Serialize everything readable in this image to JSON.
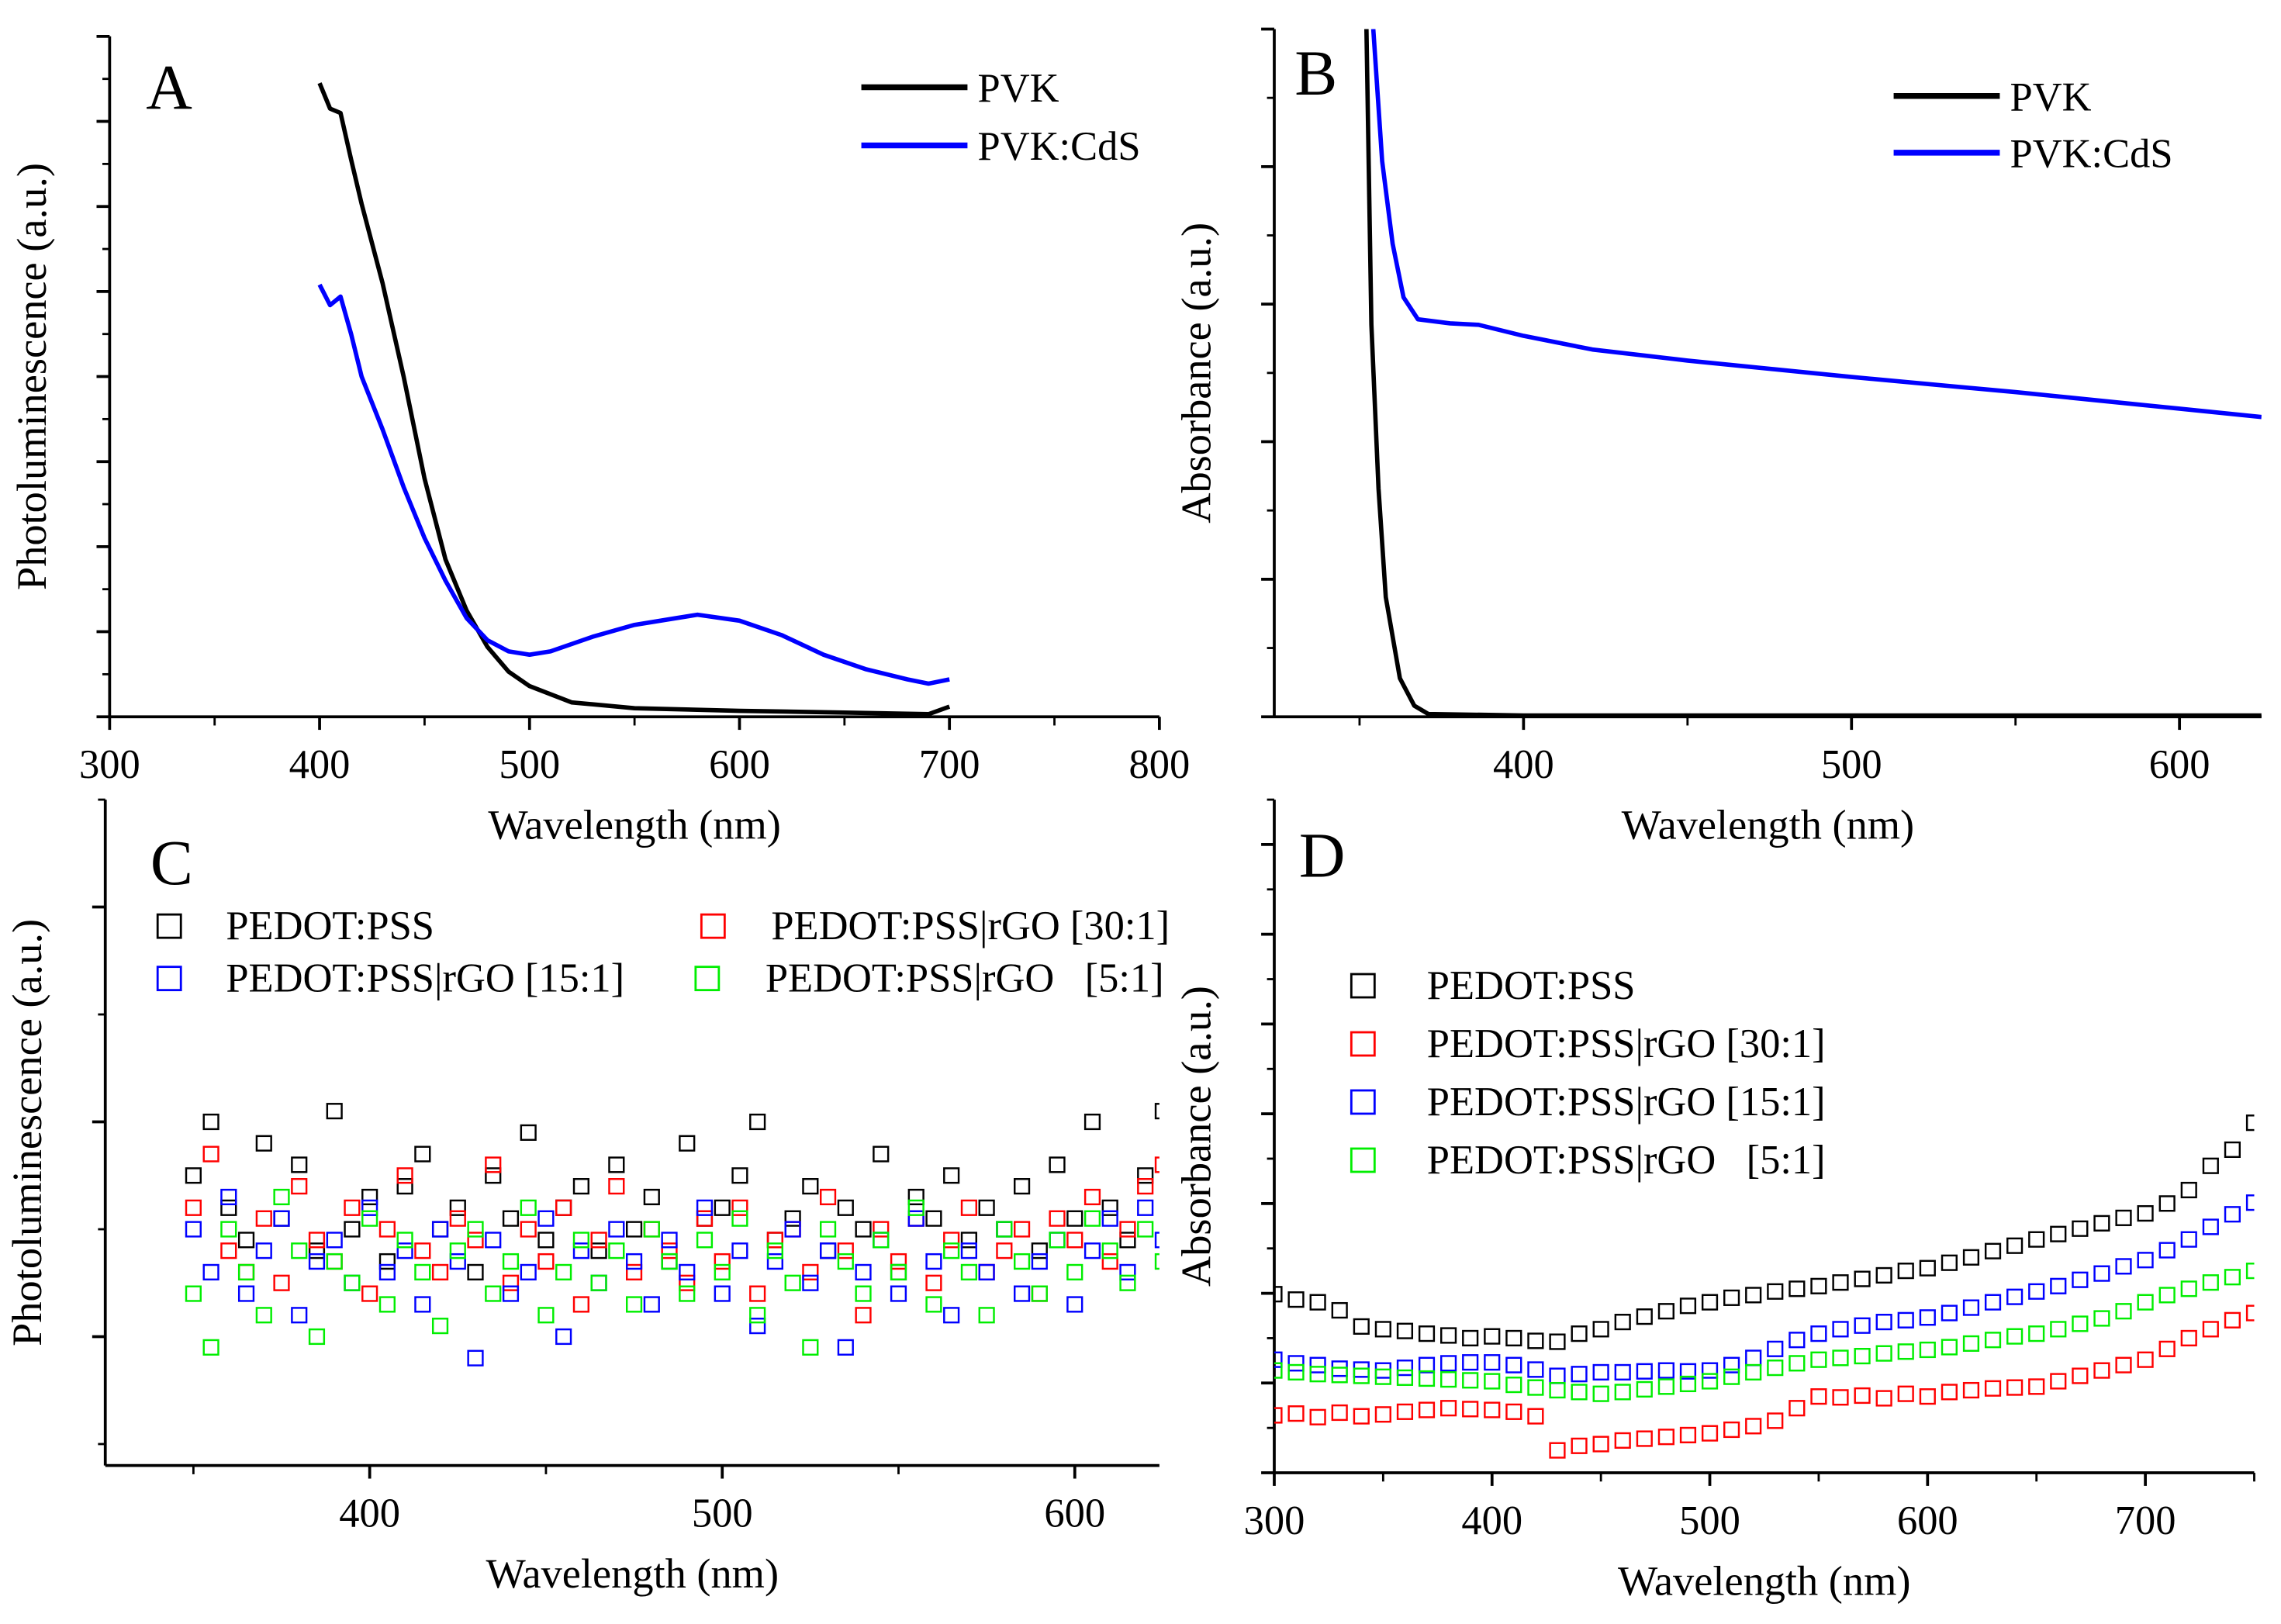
{
  "chart_data": [
    {
      "panel": "A",
      "type": "line",
      "xlabel": "Wavelength (nm)",
      "ylabel": "Photoluminescence (a.u.)",
      "xlim": [
        300,
        800
      ],
      "ylim": [
        0,
        8
      ],
      "xticks": [
        300,
        400,
        500,
        600,
        700,
        800
      ],
      "y_tick_labels_shown": false,
      "grid": false,
      "legend_placement": "top-right",
      "series": [
        {
          "name": "PVK",
          "color": "#000000",
          "x": [
            400,
            405,
            410,
            415,
            420,
            430,
            440,
            450,
            460,
            470,
            480,
            490,
            500,
            520,
            550,
            600,
            650,
            690,
            700
          ],
          "y": [
            7.45,
            7.15,
            7.1,
            6.55,
            6.03,
            5.1,
            4.0,
            2.8,
            1.85,
            1.25,
            0.82,
            0.53,
            0.36,
            0.17,
            0.1,
            0.07,
            0.05,
            0.03,
            0.12
          ]
        },
        {
          "name": "PVK:CdS",
          "color": "#0000ff",
          "x": [
            400,
            405,
            410,
            415,
            420,
            430,
            440,
            450,
            460,
            470,
            480,
            490,
            500,
            510,
            530,
            550,
            570,
            580,
            600,
            620,
            640,
            660,
            680,
            690,
            700
          ],
          "y": [
            5.08,
            4.84,
            4.94,
            4.5,
            4.0,
            3.38,
            2.7,
            2.1,
            1.6,
            1.16,
            0.9,
            0.77,
            0.73,
            0.77,
            0.94,
            1.08,
            1.16,
            1.2,
            1.13,
            0.96,
            0.73,
            0.56,
            0.44,
            0.39,
            0.44
          ]
        }
      ]
    },
    {
      "panel": "B",
      "type": "line",
      "xlabel": "Wavelength (nm)",
      "ylabel": "Absorbance (a.u.)",
      "xlim": [
        324,
        625
      ],
      "ylim": [
        0,
        5
      ],
      "xticks": [
        400,
        500,
        600
      ],
      "y_tick_labels_shown": false,
      "grid": false,
      "legend_placement": "top-right",
      "series": [
        {
          "name": "PVK",
          "color": "#000000",
          "x": [
            352.1,
            353.6,
            355.8,
            358,
            362.3,
            366.7,
            371,
            400,
            450,
            500,
            550,
            600,
            625
          ],
          "y": [
            5,
            2.85,
            1.66,
            0.87,
            0.28,
            0.08,
            0.02,
            0.01,
            0.01,
            0.01,
            0.01,
            0.01,
            0.01
          ]
        },
        {
          "name": "PVK:CdS",
          "color": "#0000ff",
          "x": [
            354.2,
            356.9,
            360.1,
            363.4,
            367.8,
            377.6,
            386.3,
            400,
            421,
            450,
            500,
            550,
            600,
            625
          ],
          "y": [
            5,
            4.04,
            3.44,
            3.05,
            2.89,
            2.86,
            2.85,
            2.77,
            2.67,
            2.59,
            2.47,
            2.36,
            2.24,
            2.18
          ]
        }
      ]
    },
    {
      "panel": "C",
      "type": "scatter",
      "xlabel": "Wavelength (nm)",
      "ylabel": "Photoluminescence (a.u.)",
      "xlim": [
        325,
        624
      ],
      "ylim": [
        0.4,
        3.5
      ],
      "xticks": [
        400,
        500,
        600
      ],
      "y_tick_labels_shown": false,
      "grid": false,
      "legend_placement": "top",
      "marker": "open-square",
      "x": [
        350,
        355,
        360,
        365,
        370,
        375,
        380,
        385,
        390,
        395,
        400,
        405,
        410,
        415,
        420,
        425,
        430,
        435,
        440,
        445,
        450,
        455,
        460,
        465,
        470,
        475,
        480,
        485,
        490,
        495,
        500,
        505,
        510,
        515,
        520,
        525,
        530,
        535,
        540,
        545,
        550,
        555,
        560,
        565,
        570,
        575,
        580,
        585,
        590,
        595,
        600,
        605,
        610,
        615,
        620,
        625
      ],
      "series": [
        {
          "name": "PEDOT:PSS",
          "color": "#000000",
          "y": [
            1.75,
            2.0,
            1.6,
            1.45,
            1.9,
            1.55,
            1.8,
            1.4,
            2.05,
            1.5,
            1.65,
            1.35,
            1.7,
            1.85,
            1.5,
            1.6,
            1.3,
            1.75,
            1.55,
            1.95,
            1.45,
            1.6,
            1.7,
            1.4,
            1.8,
            1.5,
            1.65,
            1.35,
            1.9,
            1.55,
            1.6,
            1.75,
            2.0,
            1.45,
            1.55,
            1.7,
            1.4,
            1.6,
            1.5,
            1.85,
            1.3,
            1.65,
            1.55,
            1.75,
            1.45,
            1.6,
            1.5,
            1.7,
            1.4,
            1.8,
            1.55,
            2.0,
            1.6,
            1.45,
            1.75,
            2.05
          ]
        },
        {
          "name": "PEDOT:PSS|rGO [30:1]",
          "color": "#ff0000",
          "y": [
            1.6,
            1.85,
            1.4,
            1.3,
            1.55,
            1.25,
            1.7,
            1.45,
            1.35,
            1.6,
            1.2,
            1.5,
            1.75,
            1.4,
            1.3,
            1.55,
            1.45,
            1.8,
            1.25,
            1.5,
            1.35,
            1.6,
            1.15,
            1.45,
            1.7,
            1.3,
            1.5,
            1.4,
            1.25,
            1.55,
            1.35,
            1.6,
            1.2,
            1.45,
            1.5,
            1.3,
            1.65,
            1.4,
            1.1,
            1.5,
            1.35,
            1.55,
            1.25,
            1.45,
            1.6,
            1.3,
            1.4,
            1.5,
            1.2,
            1.55,
            1.45,
            1.65,
            1.35,
            1.5,
            1.7,
            1.8
          ]
        },
        {
          "name": "PEDOT:PSS|rGO [15:1]",
          "color": "#0000ff",
          "y": [
            1.5,
            1.3,
            1.65,
            1.2,
            1.4,
            1.55,
            1.1,
            1.35,
            1.45,
            1.25,
            1.6,
            1.3,
            1.4,
            1.15,
            1.5,
            1.35,
            0.9,
            1.45,
            1.2,
            1.3,
            1.55,
            1.0,
            1.4,
            1.25,
            1.5,
            1.35,
            1.15,
            1.45,
            1.3,
            1.6,
            1.2,
            1.4,
            1.05,
            1.35,
            1.5,
            1.25,
            1.4,
            0.95,
            1.3,
            1.45,
            1.2,
            1.55,
            1.35,
            1.1,
            1.4,
            1.3,
            1.5,
            1.2,
            1.35,
            1.45,
            1.15,
            1.4,
            1.55,
            1.3,
            1.6,
            1.45
          ]
        },
        {
          "name": "PEDOT:PSS|rGO   [5:1]",
          "color": "#00ee00",
          "y": [
            1.2,
            0.95,
            1.5,
            1.3,
            1.1,
            1.65,
            1.4,
            1.0,
            1.35,
            1.25,
            1.55,
            1.15,
            1.45,
            1.3,
            1.05,
            1.4,
            1.5,
            1.2,
            1.35,
            1.6,
            1.1,
            1.3,
            1.45,
            1.25,
            1.4,
            1.15,
            1.5,
            1.35,
            1.2,
            1.45,
            1.3,
            1.55,
            1.1,
            1.4,
            1.25,
            0.95,
            1.5,
            1.35,
            1.2,
            1.45,
            1.3,
            1.6,
            1.15,
            1.4,
            1.3,
            1.1,
            1.5,
            1.35,
            1.2,
            1.45,
            1.3,
            1.55,
            1.4,
            1.25,
            1.5,
            1.35
          ]
        }
      ]
    },
    {
      "panel": "D",
      "type": "scatter",
      "xlabel": "Wavelength (nm)",
      "ylabel": "Absorbance (a.u.)",
      "xlim": [
        300,
        750
      ],
      "ylim": [
        0,
        7.5
      ],
      "xticks": [
        300,
        400,
        500,
        600,
        700
      ],
      "y_tick_labels_shown": false,
      "grid": false,
      "legend_placement": "upper-left",
      "marker": "open-square",
      "x": [
        300,
        310,
        320,
        330,
        340,
        350,
        360,
        370,
        380,
        390,
        400,
        410,
        420,
        430,
        440,
        450,
        460,
        470,
        480,
        490,
        500,
        510,
        520,
        530,
        540,
        550,
        560,
        570,
        580,
        590,
        600,
        610,
        620,
        630,
        640,
        650,
        660,
        670,
        680,
        690,
        700,
        710,
        720,
        730,
        740,
        750
      ],
      "series": [
        {
          "name": "PEDOT:PSS",
          "color": "#000000",
          "y": [
            1.99,
            1.93,
            1.9,
            1.81,
            1.63,
            1.6,
            1.58,
            1.55,
            1.53,
            1.5,
            1.52,
            1.5,
            1.47,
            1.46,
            1.55,
            1.6,
            1.68,
            1.74,
            1.8,
            1.86,
            1.9,
            1.95,
            1.98,
            2.02,
            2.05,
            2.08,
            2.12,
            2.16,
            2.2,
            2.25,
            2.28,
            2.34,
            2.4,
            2.47,
            2.53,
            2.6,
            2.66,
            2.72,
            2.78,
            2.84,
            2.89,
            3.0,
            3.15,
            3.42,
            3.6,
            3.9
          ]
        },
        {
          "name": "PEDOT:PSS|rGO [30:1]",
          "color": "#ff0000",
          "y": [
            0.64,
            0.66,
            0.62,
            0.67,
            0.63,
            0.65,
            0.68,
            0.7,
            0.72,
            0.71,
            0.7,
            0.68,
            0.63,
            0.25,
            0.3,
            0.32,
            0.36,
            0.38,
            0.4,
            0.42,
            0.44,
            0.48,
            0.52,
            0.58,
            0.72,
            0.85,
            0.84,
            0.86,
            0.83,
            0.88,
            0.85,
            0.9,
            0.92,
            0.94,
            0.95,
            0.96,
            1.02,
            1.08,
            1.14,
            1.2,
            1.26,
            1.38,
            1.5,
            1.6,
            1.7,
            1.78
          ]
        },
        {
          "name": "PEDOT:PSS|rGO [15:1]",
          "color": "#0000ff",
          "y": [
            1.26,
            1.22,
            1.2,
            1.16,
            1.15,
            1.14,
            1.17,
            1.2,
            1.22,
            1.23,
            1.23,
            1.2,
            1.15,
            1.08,
            1.1,
            1.12,
            1.12,
            1.13,
            1.14,
            1.13,
            1.14,
            1.2,
            1.28,
            1.38,
            1.48,
            1.55,
            1.6,
            1.64,
            1.68,
            1.7,
            1.73,
            1.78,
            1.84,
            1.9,
            1.96,
            2.02,
            2.08,
            2.15,
            2.22,
            2.3,
            2.37,
            2.48,
            2.6,
            2.74,
            2.88,
            3.01
          ]
        },
        {
          "name": "PEDOT:PSS|rGO   [5:1]",
          "color": "#00ee00",
          "y": [
            1.14,
            1.12,
            1.1,
            1.09,
            1.08,
            1.07,
            1.06,
            1.05,
            1.04,
            1.03,
            1.02,
            0.98,
            0.95,
            0.92,
            0.9,
            0.88,
            0.9,
            0.93,
            0.96,
            0.99,
            1.02,
            1.07,
            1.12,
            1.17,
            1.22,
            1.26,
            1.28,
            1.3,
            1.33,
            1.35,
            1.37,
            1.4,
            1.44,
            1.48,
            1.52,
            1.55,
            1.6,
            1.66,
            1.72,
            1.8,
            1.9,
            1.98,
            2.05,
            2.12,
            2.18,
            2.25
          ]
        }
      ]
    }
  ]
}
